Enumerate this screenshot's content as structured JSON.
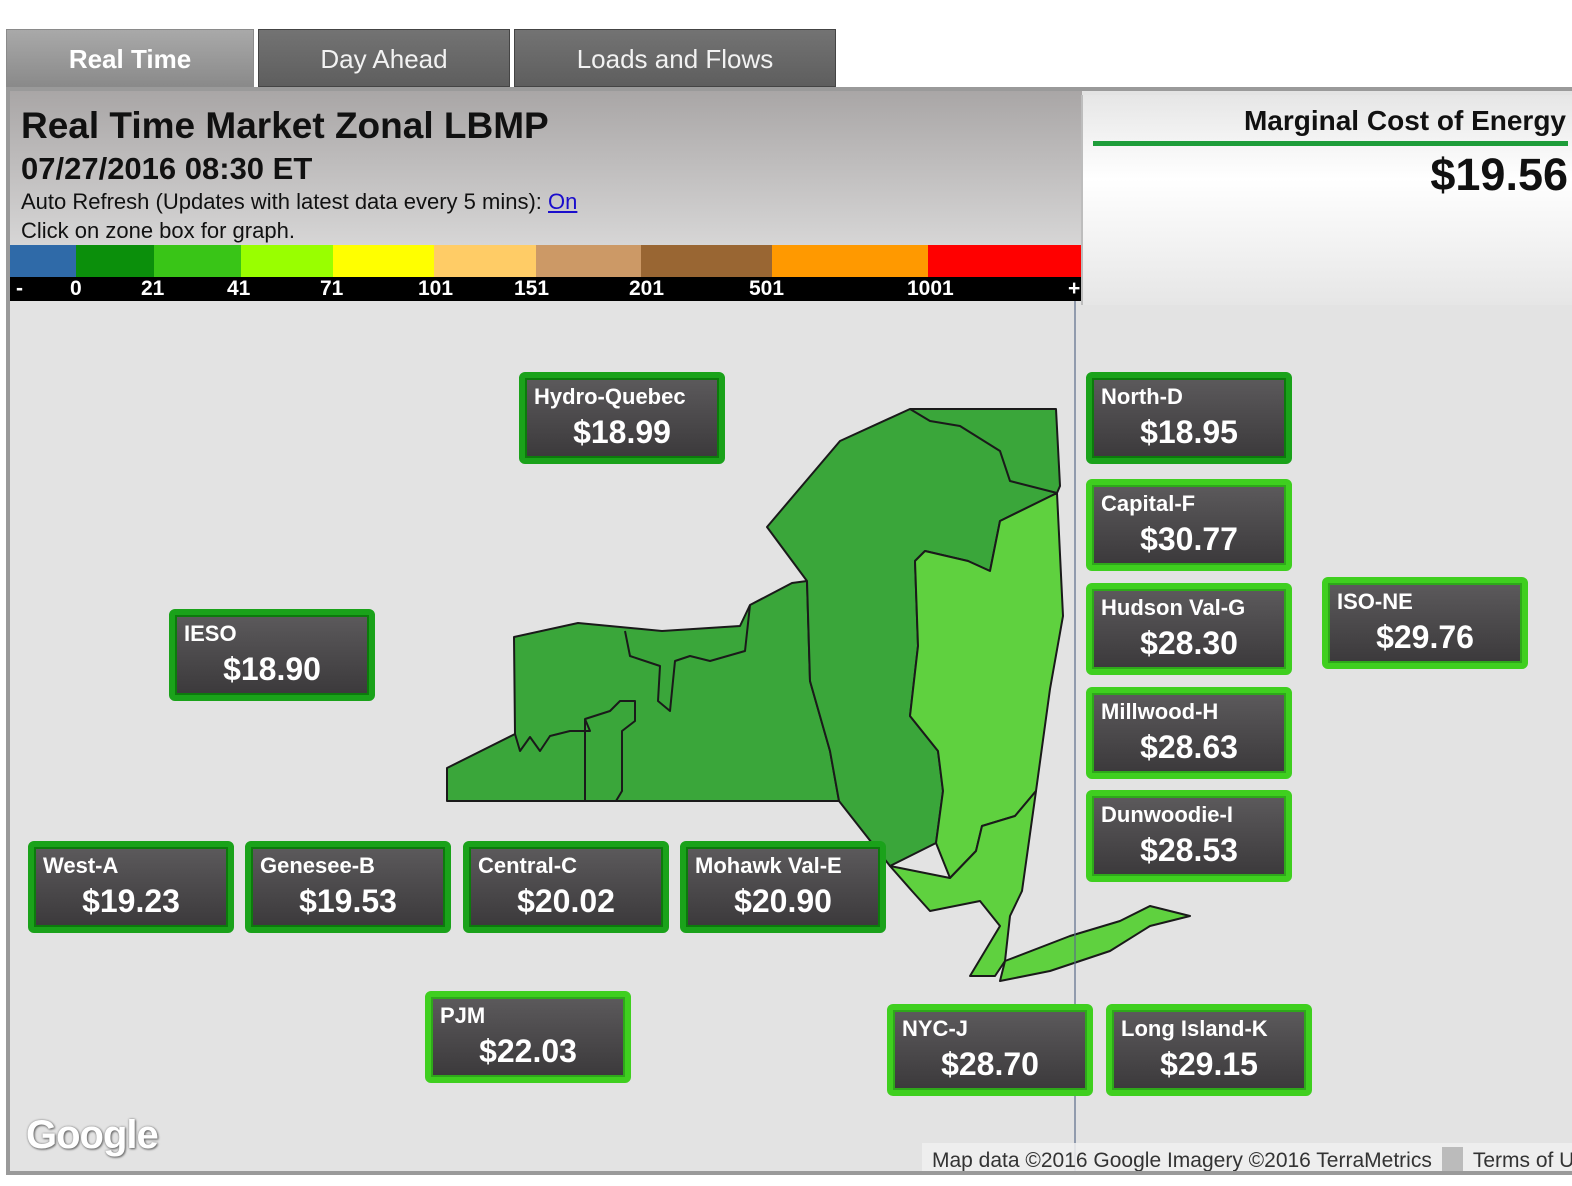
{
  "tabs": [
    {
      "label": "Real Time",
      "active": true
    },
    {
      "label": "Day Ahead",
      "active": false
    },
    {
      "label": "Loads and Flows",
      "active": false
    }
  ],
  "header": {
    "title": "Real Time Market Zonal LBMP",
    "datetime": "07/27/2016 08:30 ET",
    "refresh_text": "Auto Refresh (Updates with latest data every 5 mins): ",
    "refresh_link": "On",
    "hint": "Click on zone box for graph."
  },
  "scale": {
    "colors": [
      "#2f6aa8",
      "#0b8f0b",
      "#39c517",
      "#99ff00",
      "#ffff00",
      "#ffcc66",
      "#cc9966",
      "#996633",
      "#ff9900",
      "#ff0000"
    ],
    "labels": [
      "-",
      "0",
      "21",
      "41",
      "71",
      "101",
      "151",
      "201",
      "501",
      "1001",
      "+"
    ]
  },
  "mce": {
    "label": "Marginal Cost of Energy",
    "value": "$19.56",
    "accent": "#1e9d3a"
  },
  "zones": {
    "hydro_quebec": {
      "name": "Hydro-Quebec",
      "value": "$18.99"
    },
    "north_d": {
      "name": "North-D",
      "value": "$18.95"
    },
    "capital_f": {
      "name": "Capital-F",
      "value": "$30.77"
    },
    "hudson_val_g": {
      "name": "Hudson Val-G",
      "value": "$28.30"
    },
    "iso_ne": {
      "name": "ISO-NE",
      "value": "$29.76"
    },
    "millwood_h": {
      "name": "Millwood-H",
      "value": "$28.63"
    },
    "dunwoodie_i": {
      "name": "Dunwoodie-I",
      "value": "$28.53"
    },
    "ieso": {
      "name": "IESO",
      "value": "$18.90"
    },
    "west_a": {
      "name": "West-A",
      "value": "$19.23"
    },
    "genesee_b": {
      "name": "Genesee-B",
      "value": "$19.53"
    },
    "central_c": {
      "name": "Central-C",
      "value": "$20.02"
    },
    "mohawk_val_e": {
      "name": "Mohawk Val-E",
      "value": "$20.90"
    },
    "pjm": {
      "name": "PJM",
      "value": "$22.03"
    },
    "nyc_j": {
      "name": "NYC-J",
      "value": "$28.70"
    },
    "long_island_k": {
      "name": "Long Island-K",
      "value": "$29.15"
    }
  },
  "map_colors": {
    "dark_green": "#3aa63a",
    "light_green": "#5fd13f",
    "outline": "#1a1a1a"
  },
  "google_logo": "Google",
  "attribution": {
    "data": "Map data ©2016 Google Imagery ©2016 TerraMetrics",
    "terms": "Terms of Use"
  }
}
